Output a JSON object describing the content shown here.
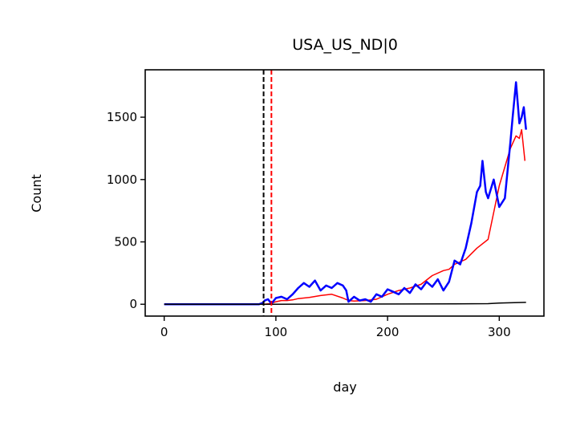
{
  "chart_data": {
    "type": "line",
    "title": "USA_US_ND|0",
    "xlabel": "day",
    "ylabel": "Count",
    "xlim": [
      -17,
      340
    ],
    "ylim": [
      -95,
      1880
    ],
    "xticks": [
      0,
      100,
      200,
      300
    ],
    "yticks": [
      0,
      500,
      1000,
      1500
    ],
    "grid": false,
    "legend": "none",
    "vlines": [
      {
        "x": 89,
        "color": "#000000",
        "style": "dashed"
      },
      {
        "x": 96,
        "color": "#ff0000",
        "style": "dashed"
      }
    ],
    "series": [
      {
        "color": "#ff0000",
        "width": 1.5,
        "points": [
          [
            0,
            0
          ],
          [
            89,
            0
          ],
          [
            95,
            5
          ],
          [
            100,
            20
          ],
          [
            105,
            30
          ],
          [
            110,
            30
          ],
          [
            115,
            35
          ],
          [
            120,
            45
          ],
          [
            130,
            55
          ],
          [
            140,
            70
          ],
          [
            150,
            80
          ],
          [
            160,
            50
          ],
          [
            165,
            30
          ],
          [
            170,
            25
          ],
          [
            180,
            30
          ],
          [
            190,
            40
          ],
          [
            200,
            80
          ],
          [
            210,
            110
          ],
          [
            220,
            130
          ],
          [
            230,
            160
          ],
          [
            240,
            230
          ],
          [
            250,
            270
          ],
          [
            255,
            280
          ],
          [
            260,
            320
          ],
          [
            270,
            360
          ],
          [
            280,
            450
          ],
          [
            290,
            520
          ],
          [
            300,
            950
          ],
          [
            310,
            1250
          ],
          [
            315,
            1350
          ],
          [
            318,
            1330
          ],
          [
            320,
            1400
          ],
          [
            323,
            1150
          ]
        ]
      },
      {
        "color": "#0000ff",
        "width": 2.5,
        "points": [
          [
            0,
            0
          ],
          [
            85,
            0
          ],
          [
            88,
            10
          ],
          [
            90,
            30
          ],
          [
            93,
            40
          ],
          [
            96,
            5
          ],
          [
            100,
            50
          ],
          [
            105,
            60
          ],
          [
            110,
            40
          ],
          [
            115,
            80
          ],
          [
            120,
            130
          ],
          [
            125,
            170
          ],
          [
            130,
            140
          ],
          [
            135,
            190
          ],
          [
            140,
            110
          ],
          [
            145,
            150
          ],
          [
            150,
            130
          ],
          [
            155,
            170
          ],
          [
            160,
            150
          ],
          [
            163,
            110
          ],
          [
            165,
            20
          ],
          [
            170,
            60
          ],
          [
            175,
            30
          ],
          [
            180,
            40
          ],
          [
            185,
            20
          ],
          [
            190,
            80
          ],
          [
            195,
            60
          ],
          [
            200,
            120
          ],
          [
            205,
            100
          ],
          [
            210,
            80
          ],
          [
            215,
            130
          ],
          [
            220,
            90
          ],
          [
            225,
            160
          ],
          [
            230,
            120
          ],
          [
            235,
            180
          ],
          [
            240,
            140
          ],
          [
            245,
            200
          ],
          [
            250,
            110
          ],
          [
            255,
            180
          ],
          [
            260,
            350
          ],
          [
            265,
            320
          ],
          [
            270,
            450
          ],
          [
            275,
            650
          ],
          [
            280,
            900
          ],
          [
            283,
            950
          ],
          [
            285,
            1150
          ],
          [
            288,
            900
          ],
          [
            290,
            850
          ],
          [
            295,
            1000
          ],
          [
            300,
            780
          ],
          [
            305,
            850
          ],
          [
            310,
            1300
          ],
          [
            312,
            1500
          ],
          [
            315,
            1780
          ],
          [
            318,
            1450
          ],
          [
            320,
            1500
          ],
          [
            322,
            1580
          ],
          [
            324,
            1400
          ]
        ]
      },
      {
        "color": "#000000",
        "width": 1.5,
        "points": [
          [
            0,
            0
          ],
          [
            96,
            0
          ],
          [
            260,
            3
          ],
          [
            290,
            5
          ],
          [
            300,
            10
          ],
          [
            310,
            12
          ],
          [
            324,
            15
          ]
        ]
      }
    ]
  }
}
